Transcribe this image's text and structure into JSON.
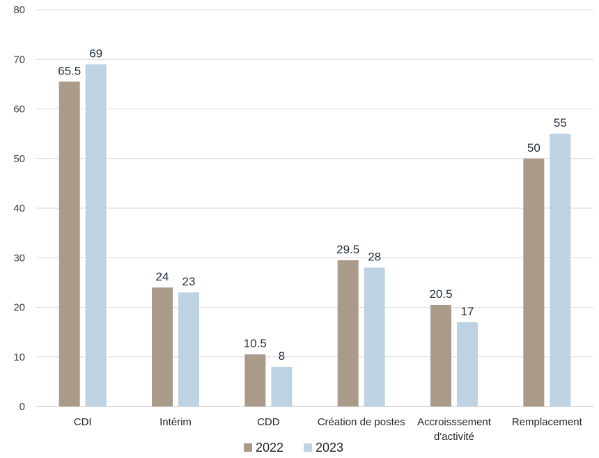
{
  "chart_data": {
    "type": "bar",
    "categories": [
      [
        "CDI"
      ],
      [
        "Intérim"
      ],
      [
        "CDD"
      ],
      [
        "Création de postes"
      ],
      [
        "Accroisssement",
        "d'activité"
      ],
      [
        "Remplacement"
      ]
    ],
    "series": [
      {
        "name": "2022",
        "color": "#a99a8a",
        "values": [
          65.5,
          24,
          10.5,
          29.5,
          20.5,
          50
        ]
      },
      {
        "name": "2023",
        "color": "#bdd3e4",
        "values": [
          69,
          23,
          8,
          28,
          17,
          55
        ]
      }
    ],
    "data_labels": [
      [
        "65.5",
        "24",
        "10.5",
        "29.5",
        "20.5",
        "50"
      ],
      [
        "69",
        "23",
        "8",
        "28",
        "17",
        "55"
      ]
    ],
    "ylim": [
      0,
      80
    ],
    "yticks": [
      0,
      10,
      20,
      30,
      40,
      50,
      60,
      70,
      80
    ],
    "grid": true,
    "legend": "bottom",
    "title": "",
    "xlabel": "",
    "ylabel": ""
  }
}
